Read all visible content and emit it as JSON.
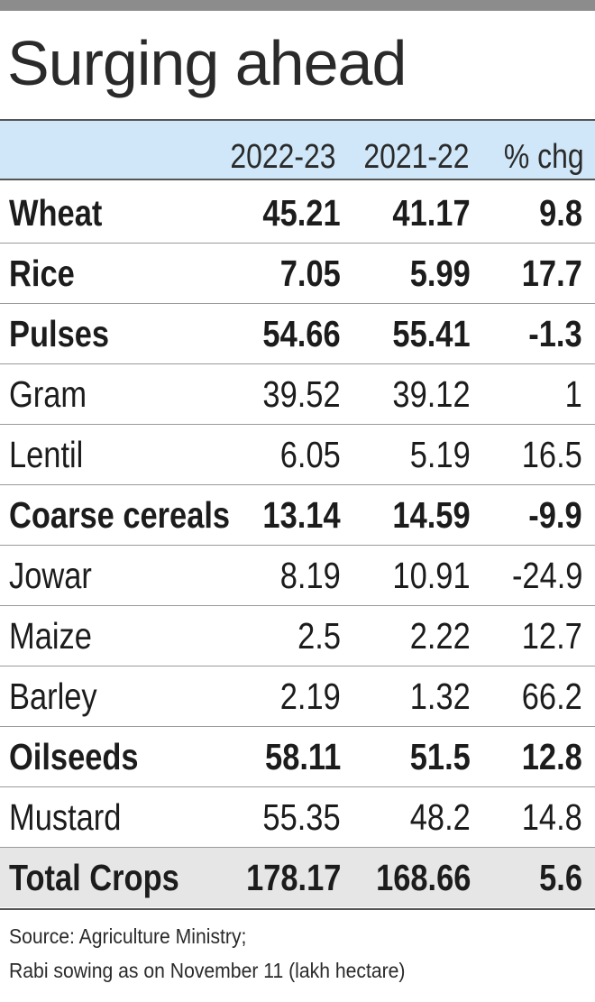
{
  "title": "Surging ahead",
  "chart_data": {
    "type": "table",
    "title": "Surging ahead",
    "columns": [
      "",
      "2022-23",
      "2021-22",
      "% chg"
    ],
    "rows": [
      {
        "crop": "Wheat",
        "bold": true,
        "v2022_23": "45.21",
        "v2021_22": "41.17",
        "pct_chg": "9.8"
      },
      {
        "crop": "Rice",
        "bold": true,
        "v2022_23": "7.05",
        "v2021_22": "5.99",
        "pct_chg": "17.7"
      },
      {
        "crop": "Pulses",
        "bold": true,
        "v2022_23": "54.66",
        "v2021_22": "55.41",
        "pct_chg": "-1.3"
      },
      {
        "crop": "Gram",
        "bold": false,
        "v2022_23": "39.52",
        "v2021_22": "39.12",
        "pct_chg": "1"
      },
      {
        "crop": "Lentil",
        "bold": false,
        "v2022_23": "6.05",
        "v2021_22": "5.19",
        "pct_chg": "16.5"
      },
      {
        "crop": "Coarse cereals",
        "bold": true,
        "v2022_23": "13.14",
        "v2021_22": "14.59",
        "pct_chg": "-9.9"
      },
      {
        "crop": "Jowar",
        "bold": false,
        "v2022_23": "8.19",
        "v2021_22": "10.91",
        "pct_chg": "-24.9"
      },
      {
        "crop": "Maize",
        "bold": false,
        "v2022_23": "2.5",
        "v2021_22": "2.22",
        "pct_chg": "12.7"
      },
      {
        "crop": "Barley",
        "bold": false,
        "v2022_23": "2.19",
        "v2021_22": "1.32",
        "pct_chg": "66.2"
      },
      {
        "crop": "Oilseeds",
        "bold": true,
        "v2022_23": "58.11",
        "v2021_22": "51.5",
        "pct_chg": "12.8"
      },
      {
        "crop": "Mustard",
        "bold": false,
        "v2022_23": "55.35",
        "v2021_22": "48.2",
        "pct_chg": "14.8"
      },
      {
        "crop": "Total Crops",
        "bold": true,
        "total": true,
        "v2022_23": "178.17",
        "v2021_22": "168.66",
        "pct_chg": "5.6"
      }
    ]
  },
  "source_line1": "Source: Agriculture Ministry;",
  "source_line2": "Rabi sowing as on November 11 (lakh hectare)",
  "colors": {
    "header_bg": "#cfe7f8",
    "total_bg": "#e6e6e6",
    "top_rule": "#8c8c8c"
  }
}
